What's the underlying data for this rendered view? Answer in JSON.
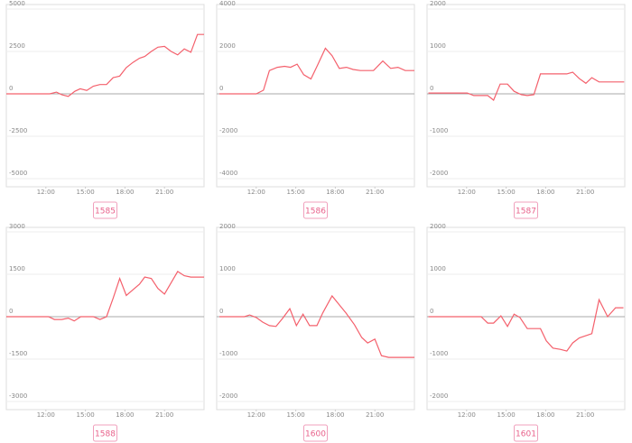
{
  "chart_data": [
    {
      "type": "line",
      "label": "1585",
      "color": "#f4606c",
      "x": [
        9,
        12.3,
        12.8,
        13.2,
        13.7,
        14.2,
        14.6,
        15.1,
        15.6,
        16.1,
        16.6,
        17.1,
        17.6,
        18.1,
        18.6,
        19.1,
        19.5,
        20.0,
        20.5,
        21.0,
        21.5,
        22.0,
        22.5,
        23.0,
        23.5,
        24
      ],
      "values": [
        0,
        0,
        100,
        -50,
        -150,
        150,
        300,
        200,
        450,
        550,
        550,
        950,
        1050,
        1550,
        1850,
        2100,
        2200,
        2500,
        2750,
        2800,
        2500,
        2300,
        2650,
        2450,
        3500,
        3500
      ],
      "xlim": [
        9,
        24
      ],
      "ylim": [
        -5000,
        5000
      ],
      "xticks": [
        {
          "value": 12,
          "label": "12:00"
        },
        {
          "value": 15,
          "label": "15:00"
        },
        {
          "value": 18,
          "label": "18:00"
        },
        {
          "value": 21,
          "label": "21:00"
        }
      ],
      "yticks": [
        -5000,
        -2500,
        0,
        2500,
        5000
      ],
      "grid": true
    },
    {
      "type": "line",
      "label": "1586",
      "color": "#f4606c",
      "x": [
        9.2,
        12,
        12.55,
        13.0,
        13.6,
        14.15,
        14.6,
        15.1,
        15.6,
        16.15,
        16.65,
        17.25,
        17.75,
        18.3,
        18.85,
        19.35,
        19.9,
        20.9,
        21.6,
        22.2,
        22.75,
        23.3,
        24
      ],
      "values": [
        0,
        0,
        170,
        1100,
        1250,
        1300,
        1250,
        1400,
        900,
        700,
        1350,
        2150,
        1800,
        1200,
        1250,
        1150,
        1100,
        1100,
        1550,
        1200,
        1250,
        1100,
        1100
      ],
      "xlim": [
        9,
        24
      ],
      "ylim": [
        -4000,
        4000
      ],
      "xticks": [
        {
          "value": 12,
          "label": "12:00"
        },
        {
          "value": 15,
          "label": "15:00"
        },
        {
          "value": 18,
          "label": "18:00"
        },
        {
          "value": 21,
          "label": "21:00"
        }
      ],
      "yticks": [
        -4000,
        -2000,
        0,
        2000,
        4000
      ],
      "grid": true
    },
    {
      "type": "line",
      "label": "1587",
      "color": "#f4606c",
      "x": [
        9.1,
        12.05,
        12.55,
        13.6,
        14.05,
        14.55,
        15.1,
        15.6,
        16.15,
        16.6,
        17.1,
        17.6,
        18.05,
        18.55,
        19.6,
        20.05,
        20.55,
        21.05,
        21.5,
        22.05,
        22.55,
        23.95
      ],
      "values": [
        20,
        20,
        -40,
        -40,
        -150,
        230,
        230,
        60,
        -20,
        -40,
        -20,
        470,
        470,
        470,
        470,
        510,
        360,
        250,
        380,
        280,
        280,
        280
      ],
      "xlim": [
        9,
        24
      ],
      "ylim": [
        -2000,
        2000
      ],
      "xticks": [
        {
          "value": 12,
          "label": "12:00"
        },
        {
          "value": 15,
          "label": "15:00"
        },
        {
          "value": 18,
          "label": "18:00"
        },
        {
          "value": 21,
          "label": "21:00"
        }
      ],
      "yticks": [
        -2000,
        -1000,
        0,
        1000,
        2000
      ],
      "grid": true
    },
    {
      "type": "line",
      "label": "1588",
      "color": "#f4606c",
      "x": [
        9,
        12.2,
        12.65,
        13.2,
        13.7,
        14.15,
        14.65,
        15.1,
        15.6,
        16.1,
        16.6,
        17.1,
        17.6,
        18.1,
        18.6,
        19.1,
        19.5,
        20.0,
        20.5,
        21.0,
        21.5,
        22.0,
        22.5,
        23.0,
        24
      ],
      "values": [
        0,
        0,
        -100,
        -100,
        -50,
        -150,
        0,
        0,
        0,
        -100,
        0,
        650,
        1350,
        750,
        950,
        1150,
        1400,
        1350,
        1000,
        800,
        1200,
        1600,
        1450,
        1400,
        1400
      ],
      "xlim": [
        9,
        24
      ],
      "ylim": [
        -3000,
        3000
      ],
      "xticks": [
        {
          "value": 12,
          "label": "12:00"
        },
        {
          "value": 15,
          "label": "15:00"
        },
        {
          "value": 18,
          "label": "18:00"
        },
        {
          "value": 21,
          "label": "21:00"
        }
      ],
      "yticks": [
        -3000,
        -1500,
        0,
        1500,
        3000
      ],
      "grid": true
    },
    {
      "type": "line",
      "label": "1600",
      "color": "#f4606c",
      "x": [
        9.2,
        11.1,
        11.5,
        12,
        12.5,
        13.0,
        13.5,
        14.0,
        14.55,
        15.05,
        15.55,
        16.05,
        16.6,
        17.05,
        17.75,
        18.2,
        18.8,
        19.45,
        20.0,
        20.45,
        21.0,
        21.5,
        22.05,
        24
      ],
      "values": [
        0,
        0,
        40,
        -20,
        -130,
        -210,
        -230,
        -40,
        190,
        -210,
        60,
        -210,
        -210,
        90,
        490,
        320,
        90,
        -190,
        -490,
        -620,
        -530,
        -920,
        -960,
        -960
      ],
      "xlim": [
        9,
        24
      ],
      "ylim": [
        -2000,
        2000
      ],
      "xticks": [
        {
          "value": 12,
          "label": "12:00"
        },
        {
          "value": 15,
          "label": "15:00"
        },
        {
          "value": 18,
          "label": "18:00"
        },
        {
          "value": 21,
          "label": "21:00"
        }
      ],
      "yticks": [
        -2000,
        -1000,
        0,
        1000,
        2000
      ],
      "grid": true
    },
    {
      "type": "line",
      "label": "1601",
      "color": "#f4606c",
      "x": [
        9.1,
        13.1,
        13.6,
        14.05,
        14.6,
        15.1,
        15.6,
        16.05,
        16.6,
        17.6,
        18.05,
        18.55,
        19.1,
        19.6,
        20.05,
        20.55,
        21.5,
        22.05,
        22.7,
        23.3,
        23.9
      ],
      "values": [
        0,
        0,
        -150,
        -150,
        20,
        -230,
        60,
        -20,
        -280,
        -280,
        -570,
        -740,
        -770,
        -810,
        -620,
        -500,
        -400,
        400,
        0,
        210,
        210
      ],
      "xlim": [
        9,
        24
      ],
      "ylim": [
        -2000,
        2000
      ],
      "xticks": [
        {
          "value": 12,
          "label": "12:00"
        },
        {
          "value": 15,
          "label": "15:00"
        },
        {
          "value": 18,
          "label": "18:00"
        },
        {
          "value": 21,
          "label": "21:00"
        }
      ],
      "yticks": [
        -2000,
        -1000,
        0,
        1000,
        2000
      ],
      "grid": true
    }
  ]
}
